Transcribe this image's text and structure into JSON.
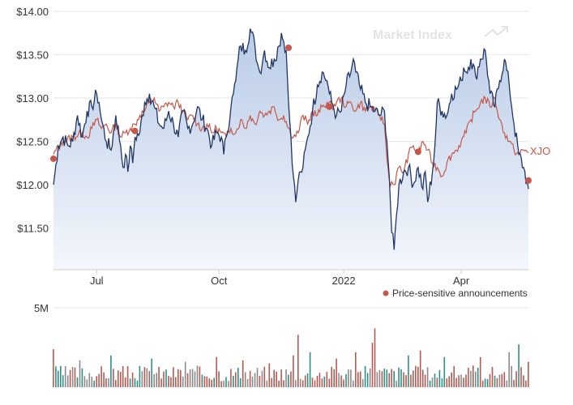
{
  "watermark": "Market Index",
  "colors": {
    "price": "#1f3563",
    "index": "#c4584a",
    "area_top": "#b9cbe7",
    "area_bottom": "#f4f7fc",
    "grid": "#e6e6e6",
    "axis_text": "#333333",
    "marker": "#c4584a",
    "vol_red": "#b55a52",
    "vol_teal": "#2f8f84",
    "vol_gray": "#8a8a8a"
  },
  "chart_data": [
    {
      "type": "line",
      "y_ticks": [
        "$14.00",
        "$13.50",
        "$13.00",
        "$12.50",
        "$12.00",
        "$11.50"
      ],
      "y_tick_values": [
        14.0,
        13.5,
        13.0,
        12.5,
        12.0,
        11.5
      ],
      "ylim": [
        11.02,
        14.0
      ],
      "x_ticks": [
        {
          "label": "Jul",
          "x": 18
        },
        {
          "label": "Oct",
          "x": 69
        },
        {
          "label": "2022",
          "x": 121
        },
        {
          "label": "Apr",
          "x": 170
        }
      ],
      "xlim": [
        0,
        198
      ],
      "legend": [
        {
          "label": "Price-sensitive announcements",
          "marker": "dot"
        }
      ],
      "series": [
        {
          "name": "",
          "role": "price",
          "anchors": [
            [
              0,
              12.0
            ],
            [
              2,
              12.45
            ],
            [
              4,
              12.55
            ],
            [
              6,
              12.45
            ],
            [
              8,
              12.5
            ],
            [
              10,
              12.8
            ],
            [
              12,
              12.55
            ],
            [
              14,
              12.85
            ],
            [
              16,
              12.9
            ],
            [
              18,
              13.05
            ],
            [
              19,
              12.95
            ],
            [
              20,
              12.75
            ],
            [
              22,
              12.5
            ],
            [
              24,
              12.4
            ],
            [
              26,
              12.8
            ],
            [
              28,
              12.45
            ],
            [
              29,
              12.2
            ],
            [
              30,
              12.35
            ],
            [
              31,
              12.15
            ],
            [
              32,
              12.45
            ],
            [
              33,
              12.25
            ],
            [
              34,
              12.55
            ],
            [
              36,
              12.6
            ],
            [
              38,
              12.95
            ],
            [
              40,
              13.05
            ],
            [
              42,
              12.9
            ],
            [
              44,
              12.7
            ],
            [
              46,
              12.65
            ],
            [
              48,
              12.85
            ],
            [
              50,
              12.7
            ],
            [
              52,
              12.55
            ],
            [
              54,
              12.85
            ],
            [
              56,
              12.65
            ],
            [
              58,
              12.7
            ],
            [
              60,
              12.9
            ],
            [
              62,
              12.75
            ],
            [
              64,
              12.65
            ],
            [
              66,
              12.45
            ],
            [
              68,
              12.6
            ],
            [
              70,
              12.55
            ],
            [
              71,
              12.35
            ],
            [
              72,
              12.55
            ],
            [
              74,
              12.9
            ],
            [
              75,
              13.05
            ],
            [
              76,
              13.2
            ],
            [
              77,
              13.45
            ],
            [
              78,
              13.6
            ],
            [
              80,
              13.55
            ],
            [
              82,
              13.8
            ],
            [
              84,
              13.6
            ],
            [
              85,
              13.4
            ],
            [
              86,
              13.3
            ],
            [
              88,
              13.55
            ],
            [
              90,
              13.35
            ],
            [
              92,
              13.45
            ],
            [
              94,
              13.6
            ],
            [
              95,
              13.75
            ],
            [
              96,
              13.65
            ],
            [
              97,
              13.55
            ],
            [
              98,
              12.95
            ],
            [
              99,
              12.55
            ],
            [
              100,
              12.1
            ],
            [
              101,
              11.8
            ],
            [
              102,
              12.05
            ],
            [
              103,
              12.15
            ],
            [
              104,
              12.2
            ],
            [
              106,
              12.55
            ],
            [
              108,
              12.85
            ],
            [
              110,
              13.15
            ],
            [
              112,
              13.3
            ],
            [
              114,
              13.2
            ],
            [
              115,
              13.05
            ],
            [
              116,
              12.95
            ],
            [
              118,
              12.8
            ],
            [
              120,
              12.85
            ],
            [
              122,
              13.15
            ],
            [
              124,
              13.3
            ],
            [
              125,
              13.45
            ],
            [
              126,
              13.3
            ],
            [
              128,
              13.1
            ],
            [
              130,
              12.95
            ],
            [
              132,
              12.9
            ],
            [
              134,
              12.85
            ],
            [
              136,
              12.8
            ],
            [
              138,
              12.85
            ],
            [
              139,
              12.5
            ],
            [
              140,
              12.1
            ],
            [
              141,
              11.45
            ],
            [
              142,
              11.25
            ],
            [
              143,
              11.65
            ],
            [
              144,
              12.0
            ],
            [
              146,
              12.15
            ],
            [
              148,
              12.2
            ],
            [
              150,
              12.0
            ],
            [
              152,
              12.2
            ],
            [
              154,
              11.95
            ],
            [
              155,
              12.15
            ],
            [
              156,
              11.8
            ],
            [
              158,
              12.15
            ],
            [
              159,
              12.45
            ],
            [
              160,
              12.95
            ],
            [
              162,
              12.85
            ],
            [
              164,
              12.8
            ],
            [
              166,
              13.05
            ],
            [
              168,
              13.1
            ],
            [
              170,
              13.2
            ],
            [
              171,
              13.35
            ],
            [
              172,
              13.3
            ],
            [
              174,
              13.45
            ],
            [
              176,
              13.25
            ],
            [
              178,
              13.45
            ],
            [
              180,
              13.55
            ],
            [
              182,
              13.05
            ],
            [
              184,
              12.9
            ],
            [
              186,
              13.2
            ],
            [
              188,
              13.45
            ],
            [
              190,
              13.15
            ],
            [
              192,
              12.7
            ],
            [
              194,
              12.35
            ],
            [
              196,
              12.2
            ],
            [
              198,
              11.95
            ]
          ]
        },
        {
          "name": "XJO",
          "role": "index",
          "anchors": [
            [
              0,
              12.35
            ],
            [
              4,
              12.5
            ],
            [
              8,
              12.55
            ],
            [
              12,
              12.6
            ],
            [
              14,
              12.55
            ],
            [
              16,
              12.65
            ],
            [
              18,
              12.75
            ],
            [
              20,
              12.65
            ],
            [
              22,
              12.7
            ],
            [
              24,
              12.6
            ],
            [
              26,
              12.7
            ],
            [
              28,
              12.55
            ],
            [
              30,
              12.6
            ],
            [
              32,
              12.65
            ],
            [
              34,
              12.7
            ],
            [
              36,
              12.8
            ],
            [
              38,
              12.85
            ],
            [
              40,
              12.95
            ],
            [
              42,
              13.0
            ],
            [
              44,
              12.85
            ],
            [
              46,
              12.9
            ],
            [
              48,
              12.95
            ],
            [
              50,
              12.9
            ],
            [
              52,
              12.95
            ],
            [
              54,
              12.85
            ],
            [
              56,
              12.75
            ],
            [
              58,
              12.8
            ],
            [
              60,
              12.7
            ],
            [
              62,
              12.65
            ],
            [
              64,
              12.7
            ],
            [
              66,
              12.6
            ],
            [
              68,
              12.65
            ],
            [
              70,
              12.6
            ],
            [
              72,
              12.55
            ],
            [
              74,
              12.65
            ],
            [
              76,
              12.6
            ],
            [
              78,
              12.75
            ],
            [
              80,
              12.65
            ],
            [
              82,
              12.8
            ],
            [
              84,
              12.7
            ],
            [
              86,
              12.85
            ],
            [
              88,
              12.8
            ],
            [
              90,
              12.85
            ],
            [
              92,
              12.9
            ],
            [
              94,
              12.75
            ],
            [
              96,
              12.8
            ],
            [
              98,
              12.65
            ],
            [
              100,
              12.55
            ],
            [
              102,
              12.6
            ],
            [
              104,
              12.8
            ],
            [
              106,
              12.7
            ],
            [
              108,
              12.85
            ],
            [
              110,
              12.8
            ],
            [
              112,
              12.9
            ],
            [
              114,
              12.95
            ],
            [
              116,
              12.9
            ],
            [
              118,
              12.95
            ],
            [
              120,
              13.0
            ],
            [
              122,
              12.9
            ],
            [
              124,
              12.95
            ],
            [
              126,
              12.85
            ],
            [
              128,
              12.95
            ],
            [
              130,
              12.85
            ],
            [
              132,
              12.9
            ],
            [
              134,
              12.85
            ],
            [
              136,
              12.8
            ],
            [
              138,
              12.7
            ],
            [
              139,
              12.3
            ],
            [
              140,
              12.05
            ],
            [
              142,
              12.0
            ],
            [
              144,
              12.2
            ],
            [
              146,
              12.15
            ],
            [
              148,
              12.35
            ],
            [
              150,
              12.45
            ],
            [
              152,
              12.35
            ],
            [
              154,
              12.5
            ],
            [
              156,
              12.4
            ],
            [
              158,
              12.25
            ],
            [
              160,
              12.2
            ],
            [
              162,
              12.1
            ],
            [
              164,
              12.25
            ],
            [
              166,
              12.35
            ],
            [
              168,
              12.4
            ],
            [
              170,
              12.5
            ],
            [
              172,
              12.6
            ],
            [
              174,
              12.75
            ],
            [
              176,
              12.85
            ],
            [
              178,
              12.95
            ],
            [
              180,
              13.0
            ],
            [
              182,
              12.9
            ],
            [
              184,
              13.0
            ],
            [
              186,
              12.75
            ],
            [
              188,
              12.6
            ],
            [
              190,
              12.5
            ],
            [
              192,
              12.4
            ],
            [
              194,
              12.35
            ],
            [
              196,
              12.4
            ],
            [
              198,
              12.37
            ]
          ]
        }
      ],
      "announcements": [
        {
          "x": 0,
          "y": 12.3
        },
        {
          "x": 34,
          "y": 12.62
        },
        {
          "x": 98,
          "y": 13.58
        },
        {
          "x": 115,
          "y": 12.9
        },
        {
          "x": 152,
          "y": 12.38
        },
        {
          "x": 198,
          "y": 12.05
        }
      ]
    },
    {
      "type": "bar",
      "role": "volume",
      "y_ticks": [
        "5M"
      ],
      "ylim_millions": [
        0,
        5
      ],
      "count": 198,
      "typical_millions": 1.1,
      "spikes_millions": [
        [
          0,
          2.4
        ],
        [
          11,
          1.7
        ],
        [
          24,
          2.0
        ],
        [
          41,
          1.8
        ],
        [
          55,
          1.6
        ],
        [
          68,
          1.9
        ],
        [
          79,
          1.7
        ],
        [
          90,
          1.5
        ],
        [
          100,
          2.0
        ],
        [
          102,
          3.3
        ],
        [
          107,
          2.2
        ],
        [
          118,
          1.8
        ],
        [
          126,
          2.2
        ],
        [
          133,
          2.8
        ],
        [
          134,
          3.7
        ],
        [
          148,
          2.0
        ],
        [
          153,
          2.3
        ],
        [
          163,
          1.9
        ],
        [
          178,
          1.9
        ],
        [
          190,
          2.2
        ],
        [
          194,
          2.7
        ],
        [
          198,
          1.6
        ]
      ]
    }
  ]
}
